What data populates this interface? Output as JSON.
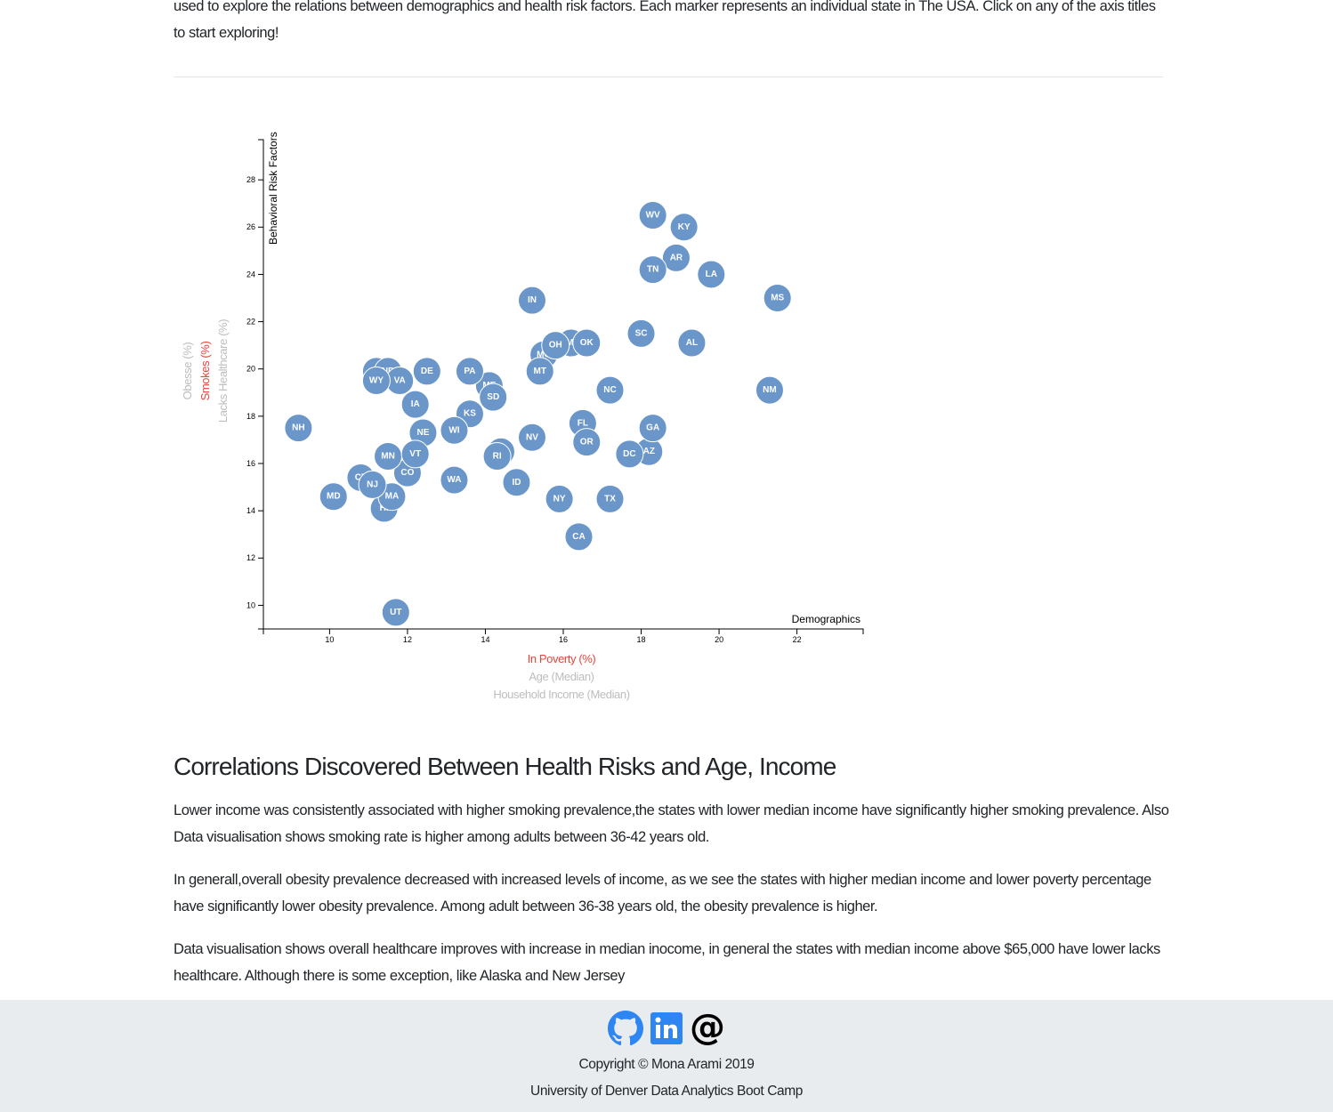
{
  "intro": {
    "text": "used to explore the relations between demographics and health risk factors. Each marker represents an individual state in The USA. Click on any of the axis titles to start exploring!"
  },
  "chart_data": {
    "type": "scatter",
    "title": "",
    "x_group_label": "Demographics",
    "y_group_label": "Behavioral Risk Factors",
    "x_axis_options": [
      "In Poverty (%)",
      "Age (Median)",
      "Household Income (Median)"
    ],
    "y_axis_options": [
      "Obesse (%)",
      "Smokes (%)",
      "Lacks Healthcare (%)"
    ],
    "active_x": "In Poverty (%)",
    "active_y": "Smokes (%)",
    "xlim": [
      8.3,
      23.7
    ],
    "ylim": [
      9,
      29.7
    ],
    "x_ticks": [
      10,
      12,
      14,
      16,
      18,
      20,
      22
    ],
    "y_ticks": [
      10,
      12,
      14,
      16,
      18,
      20,
      22,
      24,
      26,
      28
    ],
    "grid": false,
    "colors": {
      "marker": "#6a96c9",
      "active_title": "#e8453c",
      "inactive_title": "#bdbdbd"
    },
    "points": [
      {
        "state": "AL",
        "x": 19.3,
        "y": 21.1
      },
      {
        "state": "AK",
        "x": 11.2,
        "y": 19.9
      },
      {
        "state": "AZ",
        "x": 18.2,
        "y": 16.5
      },
      {
        "state": "AR",
        "x": 18.9,
        "y": 24.7
      },
      {
        "state": "CA",
        "x": 16.4,
        "y": 12.9
      },
      {
        "state": "CO",
        "x": 12.0,
        "y": 15.6
      },
      {
        "state": "CT",
        "x": 10.8,
        "y": 15.4
      },
      {
        "state": "DE",
        "x": 12.5,
        "y": 19.9
      },
      {
        "state": "DC",
        "x": 17.7,
        "y": 16.4
      },
      {
        "state": "FL",
        "x": 16.5,
        "y": 17.7
      },
      {
        "state": "GA",
        "x": 18.3,
        "y": 17.5
      },
      {
        "state": "HI",
        "x": 11.4,
        "y": 14.1
      },
      {
        "state": "ID",
        "x": 14.8,
        "y": 15.2
      },
      {
        "state": "IL",
        "x": 14.4,
        "y": 16.5
      },
      {
        "state": "IN",
        "x": 15.2,
        "y": 22.9
      },
      {
        "state": "IA",
        "x": 12.2,
        "y": 18.5
      },
      {
        "state": "KS",
        "x": 13.6,
        "y": 18.1
      },
      {
        "state": "KY",
        "x": 19.1,
        "y": 26.0
      },
      {
        "state": "LA",
        "x": 19.8,
        "y": 24.0
      },
      {
        "state": "ME",
        "x": 14.1,
        "y": 19.3
      },
      {
        "state": "MD",
        "x": 10.1,
        "y": 14.6
      },
      {
        "state": "MA",
        "x": 11.6,
        "y": 14.6
      },
      {
        "state": "MI",
        "x": 16.2,
        "y": 21.1
      },
      {
        "state": "MN",
        "x": 11.5,
        "y": 16.3
      },
      {
        "state": "MS",
        "x": 21.5,
        "y": 23.0
      },
      {
        "state": "MO",
        "x": 15.5,
        "y": 20.6
      },
      {
        "state": "MT",
        "x": 15.4,
        "y": 19.9
      },
      {
        "state": "NE",
        "x": 12.4,
        "y": 17.3
      },
      {
        "state": "NV",
        "x": 15.2,
        "y": 17.1
      },
      {
        "state": "NH",
        "x": 9.2,
        "y": 17.5
      },
      {
        "state": "NJ",
        "x": 11.1,
        "y": 15.1
      },
      {
        "state": "NM",
        "x": 21.3,
        "y": 19.1
      },
      {
        "state": "NY",
        "x": 15.9,
        "y": 14.5
      },
      {
        "state": "NC",
        "x": 17.2,
        "y": 19.1
      },
      {
        "state": "ND",
        "x": 11.5,
        "y": 19.9
      },
      {
        "state": "OH",
        "x": 15.8,
        "y": 21.0
      },
      {
        "state": "OK",
        "x": 16.6,
        "y": 21.1
      },
      {
        "state": "OR",
        "x": 16.6,
        "y": 16.9
      },
      {
        "state": "PA",
        "x": 13.6,
        "y": 19.9
      },
      {
        "state": "RI",
        "x": 14.3,
        "y": 16.3
      },
      {
        "state": "SC",
        "x": 18.0,
        "y": 21.5
      },
      {
        "state": "SD",
        "x": 14.2,
        "y": 18.8
      },
      {
        "state": "TN",
        "x": 18.3,
        "y": 24.2
      },
      {
        "state": "TX",
        "x": 17.2,
        "y": 14.5
      },
      {
        "state": "UT",
        "x": 11.7,
        "y": 9.7
      },
      {
        "state": "VT",
        "x": 12.2,
        "y": 16.4
      },
      {
        "state": "VA",
        "x": 11.8,
        "y": 19.5
      },
      {
        "state": "WA",
        "x": 13.2,
        "y": 15.3
      },
      {
        "state": "WV",
        "x": 18.3,
        "y": 26.5
      },
      {
        "state": "WI",
        "x": 13.2,
        "y": 17.4
      },
      {
        "state": "WY",
        "x": 11.2,
        "y": 19.5
      }
    ]
  },
  "analysis": {
    "heading": "Correlations Discovered Between Health Risks and Age, Income",
    "paragraphs": [
      "Lower income was consistently associated with higher smoking prevalence,the states with lower median income have significantly higher smoking prevalence. Also Data visualisation shows smoking rate is higher among adults between 36-42 years old.",
      "In generall,overall obesity prevalence decreased with increased levels of income, as we see the states with higher median income and lower poverty percentage have significantly lower obesity prevalence. Among adult between 36-38 years old, the obesity prevalence is higher.",
      "Data visualisation shows overall healthcare improves with increase in median inocome, in general the states with median income above $65,000 have lower lacks healthcare. Although there is some exception, like Alaska and New Jersey"
    ]
  },
  "footer": {
    "icons": [
      "github-icon",
      "linkedin-icon",
      "email-at-icon"
    ],
    "copyright": "Copyright © Mona Arami 2019",
    "institution": "University of Denver Data Analytics Boot Camp"
  }
}
